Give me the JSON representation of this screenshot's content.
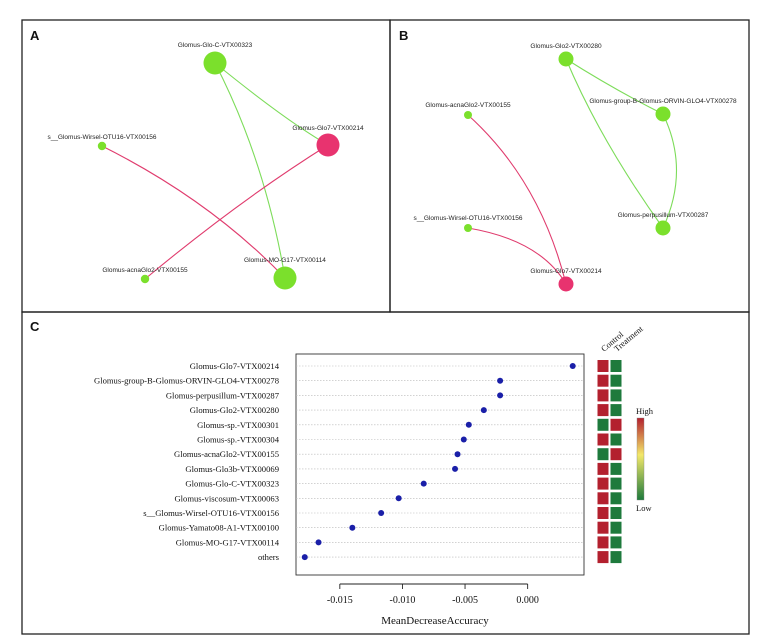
{
  "colors": {
    "positive_edge": "#7ddc5a",
    "negative_edge": "#e03c6e",
    "green_node": "#7be02c",
    "pink_node": "#e8336f",
    "dot": "#1a1fa8",
    "hm_high": "#b3202e",
    "hm_low": "#1e7a3c"
  },
  "panels": {
    "a": {
      "letter": "A",
      "nodes": [
        {
          "id": "glo_c",
          "label": "Glomus-Glo-C-VTX00323",
          "color": "green",
          "size": "large"
        },
        {
          "id": "wirsel",
          "label": "s__Glomus-Wirsel-OTU16-VTX00156",
          "color": "green",
          "size": "small"
        },
        {
          "id": "glo7",
          "label": "Glomus-Glo7-VTX00214",
          "color": "pink",
          "size": "large"
        },
        {
          "id": "acna",
          "label": "Glomus-acnaGlo2-VTX00155",
          "color": "green",
          "size": "small"
        },
        {
          "id": "mo",
          "label": "Glomus-MO-G17-VTX00114",
          "color": "green",
          "size": "large"
        }
      ],
      "edges": [
        {
          "from": "glo_c",
          "to": "glo7",
          "sign": "positive"
        },
        {
          "from": "glo_c",
          "to": "mo",
          "sign": "positive"
        },
        {
          "from": "wirsel",
          "to": "mo",
          "sign": "negative"
        },
        {
          "from": "acna",
          "to": "glo7",
          "sign": "negative"
        }
      ]
    },
    "b": {
      "letter": "B",
      "nodes": [
        {
          "id": "glo2",
          "label": "Glomus-Glo2-VTX00280",
          "color": "green",
          "size": "medium"
        },
        {
          "id": "acna",
          "label": "Glomus-acnaGlo2-VTX00155",
          "color": "green",
          "size": "small"
        },
        {
          "id": "orvin",
          "label": "Glomus-group-B-Glomus-ORVIN-GLO4-VTX00278",
          "color": "green",
          "size": "medium"
        },
        {
          "id": "wirsel",
          "label": "s__Glomus-Wirsel-OTU16-VTX00156",
          "color": "green",
          "size": "small"
        },
        {
          "id": "perp",
          "label": "Glomus-perpusillum-VTX00287",
          "color": "green",
          "size": "medium"
        },
        {
          "id": "glo7",
          "label": "Glomus-Glo7-VTX00214",
          "color": "pink",
          "size": "medium"
        }
      ],
      "edges": [
        {
          "from": "glo2",
          "to": "orvin",
          "sign": "positive"
        },
        {
          "from": "glo2",
          "to": "perp",
          "sign": "positive"
        },
        {
          "from": "orvin",
          "to": "perp",
          "sign": "positive"
        },
        {
          "from": "acna",
          "to": "glo7",
          "sign": "negative"
        },
        {
          "from": "wirsel",
          "to": "glo7",
          "sign": "negative"
        }
      ]
    },
    "c": {
      "letter": "C"
    }
  },
  "chart_data": {
    "type": "scatter",
    "title": "",
    "xlabel": "MeanDecreaseAccuracy",
    "xlim": [
      -0.0185,
      0.0045
    ],
    "xticks": [
      -0.015,
      -0.01,
      -0.005,
      0.0
    ],
    "xtick_labels": [
      "-0.015",
      "-0.010",
      "-0.005",
      "0.000"
    ],
    "categories": [
      "Glomus-Glo7-VTX00214",
      "Glomus-group-B-Glomus-ORVIN-GLO4-VTX00278",
      "Glomus-perpusillum-VTX00287",
      "Glomus-Glo2-VTX00280",
      "Glomus-sp.-VTX00301",
      "Glomus-sp.-VTX00304",
      "Glomus-acnaGlo2-VTX00155",
      "Glomus-Glo3b-VTX00069",
      "Glomus-Glo-C-VTX00323",
      "Glomus-viscosum-VTX00063",
      "s__Glomus-Wirsel-OTU16-VTX00156",
      "Glomus-Yamato08-A1-VTX00100",
      "Glomus-MO-G17-VTX00114",
      "others"
    ],
    "values": [
      0.0036,
      -0.0022,
      -0.0022,
      -0.0035,
      -0.0047,
      -0.0051,
      -0.0056,
      -0.0058,
      -0.0083,
      -0.0103,
      -0.0117,
      -0.014,
      -0.0167,
      -0.0178
    ],
    "heatmap": {
      "columns": [
        "Control",
        "Treatment"
      ],
      "cells": [
        [
          "high",
          "low"
        ],
        [
          "high",
          "low"
        ],
        [
          "high",
          "low"
        ],
        [
          "high",
          "low"
        ],
        [
          "low",
          "high"
        ],
        [
          "high",
          "low"
        ],
        [
          "low",
          "high"
        ],
        [
          "high",
          "low"
        ],
        [
          "high",
          "low"
        ],
        [
          "high",
          "low"
        ],
        [
          "high",
          "low"
        ],
        [
          "high",
          "low"
        ],
        [
          "high",
          "low"
        ],
        [
          "high",
          "low"
        ]
      ]
    },
    "legend": {
      "high_label": "High",
      "low_label": "Low"
    }
  }
}
